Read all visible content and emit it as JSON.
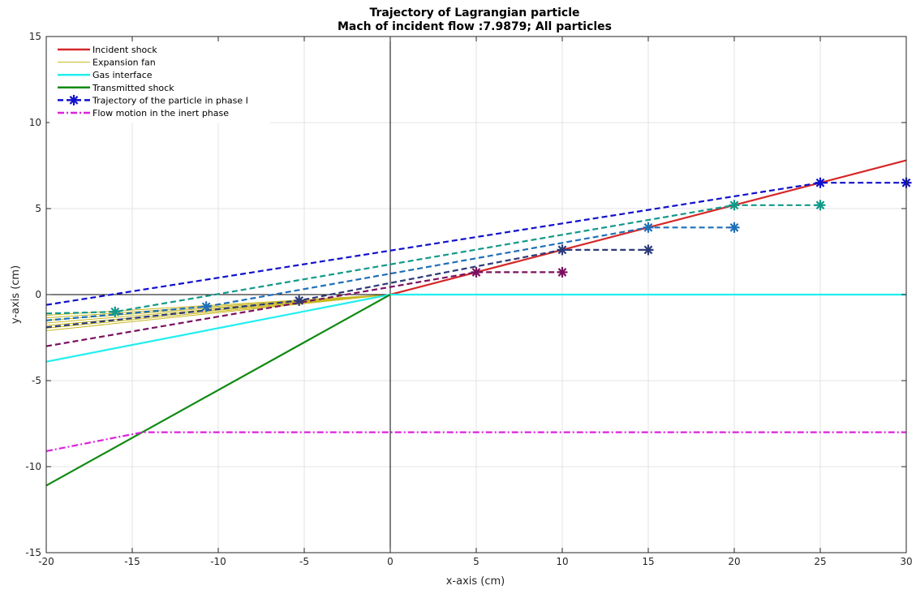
{
  "chart_data": {
    "type": "line",
    "title": [
      "Trajectory of Lagrangian particle",
      "Mach of incident flow :7.9879; All particles"
    ],
    "xlabel": "x-axis (cm)",
    "ylabel": "y-axis (cm)",
    "xlim": [
      -20,
      30
    ],
    "ylim": [
      -15,
      15
    ],
    "xticks": [
      -20,
      -15,
      -10,
      -5,
      0,
      5,
      10,
      15,
      20,
      25,
      30
    ],
    "yticks": [
      -15,
      -10,
      -5,
      0,
      5,
      10,
      15
    ],
    "grid": true,
    "legend_position": "top-left",
    "legend": [
      {
        "label": "Incident shock",
        "color": "#d62728",
        "style": "solid",
        "marker": ""
      },
      {
        "label": "Expansion fan",
        "color": "#c8b820",
        "style": "solid-thin",
        "marker": ""
      },
      {
        "label": "Gas interface",
        "color": "#22eeee",
        "style": "solid",
        "marker": ""
      },
      {
        "label": "Transmitted shock",
        "color": "#128a12",
        "style": "solid",
        "marker": ""
      },
      {
        "label": "Trajectory of the particle in phase I",
        "color": "#1010cc",
        "style": "dashed",
        "marker": "asterisk"
      },
      {
        "label": "Flow motion in the inert phase",
        "color": "#dd22dd",
        "style": "dashdot",
        "marker": ""
      }
    ],
    "reference_lines": [
      {
        "name": "x = 0",
        "x": [
          0,
          0
        ],
        "y": [
          -15,
          15
        ],
        "color": "#000000"
      },
      {
        "name": "y = 0",
        "x": [
          -20,
          0
        ],
        "y": [
          0,
          0
        ],
        "color": "#000000"
      }
    ],
    "series": [
      {
        "name": "Incident shock",
        "color": "#d62728",
        "style": "solid",
        "x": [
          0,
          30
        ],
        "y": [
          0,
          7.8
        ]
      },
      {
        "name": "Gas interface",
        "color": "#22eeee",
        "style": "solid",
        "x": [
          -20,
          0,
          30
        ],
        "y": [
          -3.9,
          0,
          0
        ]
      },
      {
        "name": "Transmitted shock",
        "color": "#128a12",
        "style": "solid",
        "x": [
          -20,
          0
        ],
        "y": [
          -11.1,
          0
        ]
      },
      {
        "name": "Flow motion in the inert phase",
        "color": "#dd22dd",
        "style": "dashdot",
        "x": [
          -20,
          -14.4,
          30
        ],
        "y": [
          -9.1,
          -8.0,
          -8.0
        ]
      }
    ],
    "expansion_fan": {
      "color": "#c8b820",
      "origin": [
        0,
        0
      ],
      "x_end": -20,
      "y_end": [
        -1.2,
        -1.35,
        -1.5,
        -1.65,
        -1.8,
        -1.95,
        -2.1
      ]
    },
    "particles": [
      {
        "color": "#7a1060",
        "x": [
          -20,
          5,
          10
        ],
        "y": [
          -3.0,
          1.3,
          1.3
        ],
        "markers_x": [
          5,
          10
        ],
        "markers_y": [
          1.3,
          1.3
        ]
      },
      {
        "color": "#2c3a78",
        "x": [
          -20,
          -5.3,
          10,
          15
        ],
        "y": [
          -1.9,
          -0.35,
          2.6,
          2.6
        ],
        "markers_x": [
          -5.3,
          10,
          15
        ],
        "markers_y": [
          -0.35,
          2.6,
          2.6
        ]
      },
      {
        "color": "#1f6fb8",
        "x": [
          -20,
          -10.7,
          15,
          20
        ],
        "y": [
          -1.5,
          -0.7,
          3.9,
          3.9
        ],
        "markers_x": [
          -10.7,
          15,
          20
        ],
        "markers_y": [
          -0.7,
          3.9,
          3.9
        ]
      },
      {
        "color": "#12998a",
        "x": [
          -20,
          -16,
          20,
          25
        ],
        "y": [
          -1.1,
          -1.0,
          5.2,
          5.2
        ],
        "markers_x": [
          -16,
          20,
          25
        ],
        "markers_y": [
          -1.0,
          5.2,
          5.2
        ]
      },
      {
        "color": "#1010cc",
        "x": [
          -20,
          25,
          30
        ],
        "y": [
          -0.6,
          6.5,
          6.5
        ],
        "markers_x": [
          25,
          30
        ],
        "markers_y": [
          6.5,
          6.5
        ]
      }
    ]
  }
}
